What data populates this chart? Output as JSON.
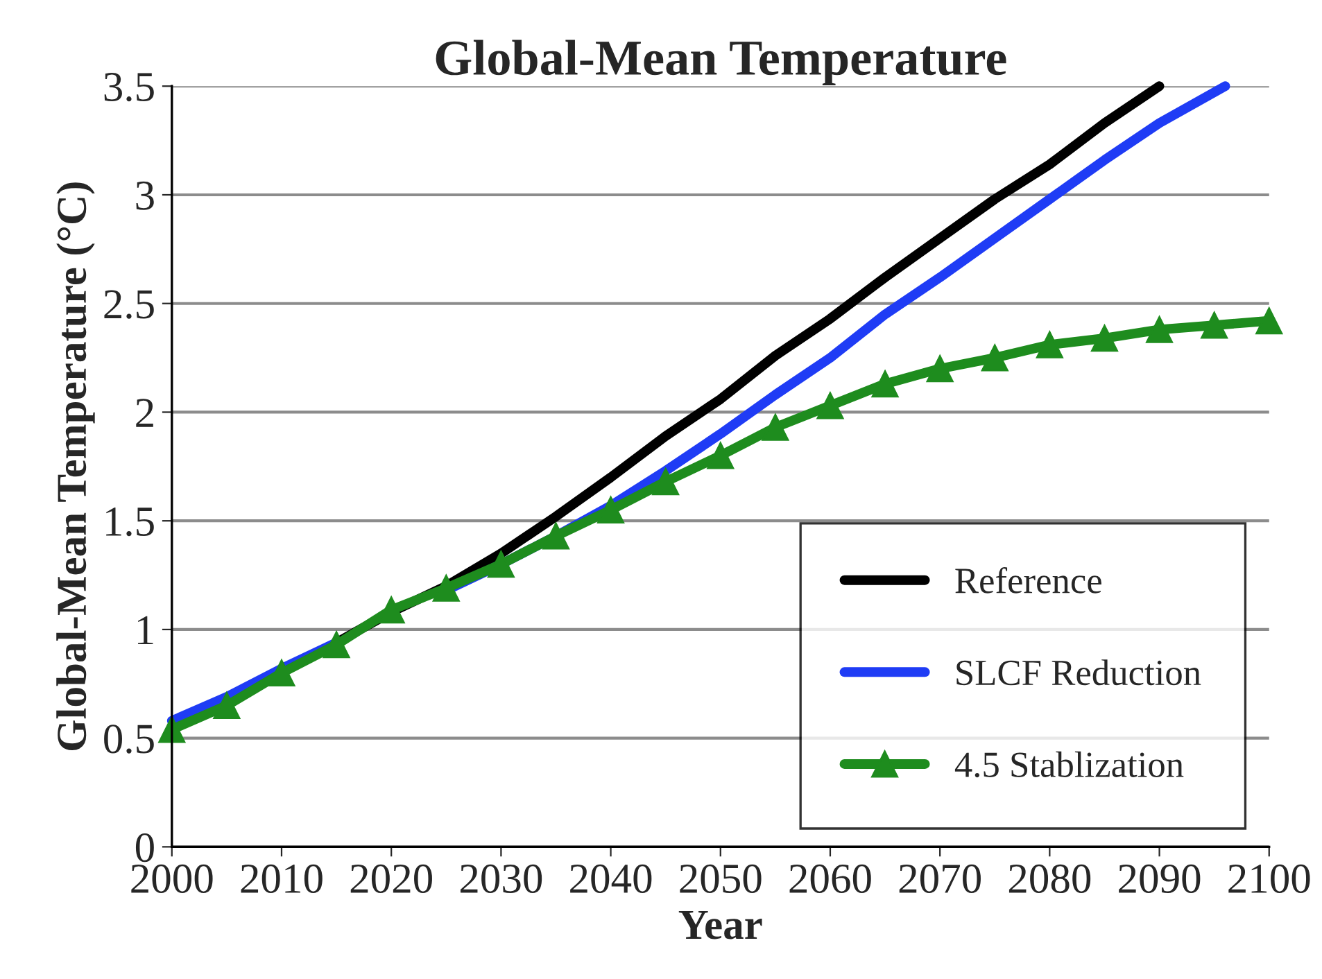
{
  "chart_data": {
    "type": "line",
    "title": "Global-Mean Temperature",
    "xlabel": "Year",
    "ylabel": "Global-Mean Temperature (°C)",
    "xlim": [
      2000,
      2100
    ],
    "xticks": [
      2000,
      2010,
      2020,
      2030,
      2040,
      2050,
      2060,
      2070,
      2080,
      2090,
      2100
    ],
    "ylim": [
      0,
      3.5
    ],
    "yticks": [
      0,
      0.5,
      1,
      1.5,
      2,
      2.5,
      3,
      3.5
    ],
    "grid": "y",
    "legend": "bottom right",
    "series": [
      {
        "name": "Reference",
        "color": "#000000",
        "marker": "none",
        "x": [
          2015,
          2020,
          2025,
          2030,
          2035,
          2040,
          2045,
          2050,
          2055,
          2060,
          2065,
          2070,
          2075,
          2080,
          2085,
          2090
        ],
        "values": [
          0.94,
          1.08,
          1.2,
          1.35,
          1.52,
          1.7,
          1.89,
          2.06,
          2.26,
          2.43,
          2.62,
          2.8,
          2.98,
          3.14,
          3.33,
          3.5
        ]
      },
      {
        "name": "SLCF Reduction",
        "color": "#1f3cf5",
        "marker": "none",
        "x": [
          2000,
          2005,
          2010,
          2015,
          2020,
          2025,
          2030,
          2035,
          2040,
          2045,
          2050,
          2055,
          2060,
          2065,
          2070,
          2075,
          2080,
          2085,
          2090,
          2096
        ],
        "values": [
          0.58,
          0.69,
          0.82,
          0.94,
          null,
          1.18,
          1.3,
          1.43,
          1.57,
          1.73,
          1.9,
          2.08,
          2.25,
          2.45,
          2.62,
          2.8,
          2.98,
          3.16,
          3.33,
          3.5
        ]
      },
      {
        "name": "4.5 Stablization",
        "color": "#1e8c1e",
        "marker": "triangle",
        "x": [
          2000,
          2005,
          2010,
          2015,
          2020,
          2025,
          2030,
          2035,
          2040,
          2045,
          2050,
          2055,
          2060,
          2065,
          2070,
          2075,
          2080,
          2085,
          2090,
          2095,
          2100
        ],
        "values": [
          0.54,
          0.65,
          0.8,
          0.93,
          1.09,
          1.19,
          1.3,
          1.43,
          1.55,
          1.68,
          1.8,
          1.93,
          2.03,
          2.13,
          2.2,
          2.25,
          2.31,
          2.34,
          2.38,
          2.4,
          2.42
        ]
      }
    ]
  }
}
